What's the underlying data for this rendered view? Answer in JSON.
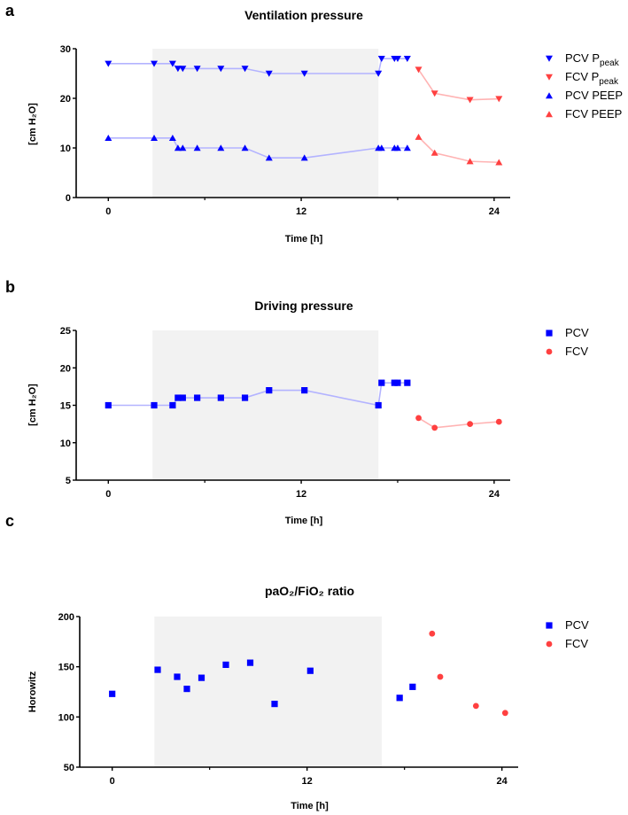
{
  "chart_data": [
    {
      "panel": "a",
      "type": "line",
      "title": "Ventilation pressure",
      "xlabel": "Time [h]",
      "ylabel": "[cm H₂O]",
      "xlim": [
        -2,
        25
      ],
      "ylim": [
        0,
        30
      ],
      "xticks": [
        0,
        12,
        24
      ],
      "xminor": [
        6,
        18
      ],
      "yticks": [
        0,
        10,
        20,
        30
      ],
      "shaded_interval": [
        2.75,
        16.8
      ],
      "legend_position": "right",
      "series": [
        {
          "name": "PCV P",
          "sub": "peak",
          "marker": "triangle-down",
          "color": "#0000ff",
          "line": "#b3b3ff",
          "x": [
            0,
            2.85,
            4.0,
            4.33,
            4.63,
            5.53,
            7.0,
            8.5,
            10.0,
            12.2,
            16.8,
            17.0,
            17.8,
            18.0,
            18.6
          ],
          "y": [
            27,
            27,
            27,
            26,
            26,
            26,
            26,
            26,
            25,
            25,
            25,
            28,
            28,
            28,
            28
          ]
        },
        {
          "name": "FCV P",
          "sub": "peak",
          "marker": "triangle-down",
          "color": "#ff4040",
          "line": "#ffb3b3",
          "x": [
            19.3,
            20.3,
            22.5,
            24.3
          ],
          "y": [
            25.8,
            21,
            19.7,
            19.9
          ]
        },
        {
          "name": "PCV PEEP",
          "sub": "",
          "marker": "triangle-up",
          "color": "#0000ff",
          "line": "#b3b3ff",
          "x": [
            0,
            2.85,
            4.0,
            4.33,
            4.63,
            5.53,
            7.0,
            8.5,
            10.0,
            12.2,
            16.8,
            17.0,
            17.8,
            18.0,
            18.6
          ],
          "y": [
            12,
            12,
            12,
            10,
            10,
            10,
            10,
            10,
            8,
            8,
            10,
            10,
            10,
            10,
            10
          ]
        },
        {
          "name": "FCV PEEP",
          "sub": "",
          "marker": "triangle-up",
          "color": "#ff4040",
          "line": "#ffb3b3",
          "x": [
            19.3,
            20.3,
            22.5,
            24.3
          ],
          "y": [
            12.2,
            9,
            7.3,
            7.1
          ]
        }
      ]
    },
    {
      "panel": "b",
      "type": "line",
      "title": "Driving pressure",
      "xlabel": "Time [h]",
      "ylabel": "[cm H₂O]",
      "xlim": [
        -2,
        25
      ],
      "ylim": [
        5,
        25
      ],
      "xticks": [
        0,
        12,
        24
      ],
      "xminor": [
        6,
        18
      ],
      "yticks": [
        5,
        10,
        15,
        20,
        25
      ],
      "shaded_interval": [
        2.75,
        16.8
      ],
      "legend_position": "right",
      "series": [
        {
          "name": "PCV",
          "sub": "",
          "marker": "square",
          "color": "#0000ff",
          "line": "#b3b3ff",
          "x": [
            0,
            2.85,
            4.0,
            4.33,
            4.63,
            5.53,
            7.0,
            8.5,
            10.0,
            12.2,
            16.8,
            17.0,
            17.8,
            18.0,
            18.6
          ],
          "y": [
            15,
            15,
            15,
            16,
            16,
            16,
            16,
            16,
            17,
            17,
            15,
            18,
            18,
            18,
            18
          ]
        },
        {
          "name": "FCV",
          "sub": "",
          "marker": "circle",
          "color": "#ff4040",
          "line": "#ffb3b3",
          "x": [
            19.3,
            20.3,
            22.5,
            24.3
          ],
          "y": [
            13.3,
            12,
            12.5,
            12.8
          ]
        }
      ]
    },
    {
      "panel": "c",
      "type": "scatter",
      "title": "paO₂/FiO₂ ratio",
      "xlabel": "Time [h]",
      "ylabel": "Horowitz",
      "xlim": [
        -2,
        25
      ],
      "ylim": [
        50,
        200
      ],
      "xticks": [
        0,
        12,
        24
      ],
      "xminor": [
        6,
        18
      ],
      "yticks": [
        50,
        100,
        150,
        200
      ],
      "shaded_interval": [
        2.6,
        16.6
      ],
      "legend_position": "right",
      "series": [
        {
          "name": "PCV",
          "sub": "",
          "marker": "square",
          "color": "#0000ff",
          "line": null,
          "x": [
            0,
            2.8,
            4.0,
            4.6,
            5.5,
            7.0,
            8.5,
            10.0,
            12.2,
            17.7,
            18.5
          ],
          "y": [
            123,
            147,
            140,
            128,
            139,
            152,
            154,
            113,
            146,
            119,
            130
          ]
        },
        {
          "name": "FCV",
          "sub": "",
          "marker": "circle",
          "color": "#ff4040",
          "line": null,
          "x": [
            19.7,
            20.2,
            22.4,
            24.2
          ],
          "y": [
            183,
            140,
            111,
            104
          ]
        }
      ]
    }
  ]
}
